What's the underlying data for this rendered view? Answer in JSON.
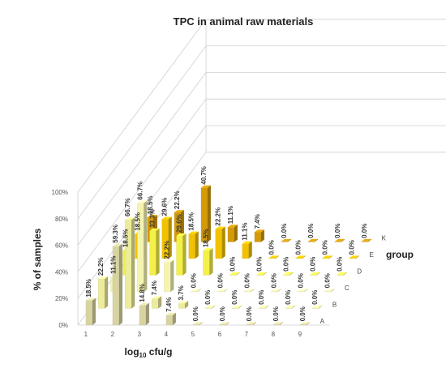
{
  "chart_data": {
    "type": "bar",
    "title": "TPC in animal raw materials",
    "ylabel": "% of samples",
    "xlabel_base": "log",
    "xlabel_sub": "10",
    "xlabel_rest": " cfu/g",
    "zlabel": "group",
    "categories": [
      "1",
      "2",
      "3",
      "4",
      "5",
      "6",
      "7",
      "8",
      "9"
    ],
    "y_ticks": [
      "0%",
      "20%",
      "40%",
      "60%",
      "80%",
      "100%"
    ],
    "ylim": [
      0,
      100
    ],
    "series": [
      {
        "name": "A",
        "color": "#d8d4a2",
        "values": [
          18.5,
          59.3,
          14.8,
          7.4,
          0.0,
          0.0,
          0.0,
          0.0,
          0.0
        ],
        "labels": [
          "18.5%",
          "59.3%",
          "14.8%",
          "7.4%",
          "0.0%",
          "0.0%",
          "0.0%",
          "0.0%",
          "0.0%"
        ]
      },
      {
        "name": "B",
        "color": "#ecec9c",
        "values": [
          22.2,
          66.7,
          7.4,
          3.7,
          0.0,
          0.0,
          0.0,
          0.0,
          0.0
        ],
        "labels": [
          "22.2%",
          "66.7%",
          "7.4%",
          "3.7%",
          "0.0%",
          "0.0%",
          "0.0%",
          "0.0%",
          "0.0%"
        ]
      },
      {
        "name": "C",
        "color": "#f4f4b0",
        "values": [
          11.1,
          66.7,
          22.2,
          0.0,
          0.0,
          0.0,
          0.0,
          0.0,
          0.0
        ],
        "labels": [
          "11.1%",
          "66.7%",
          "22.2%",
          "0.0%",
          "0.0%",
          "0.0%",
          "0.0%",
          "0.0%",
          "0.0%"
        ]
      },
      {
        "name": "D",
        "color": "#f4f04a",
        "values": [
          18.5,
          33.3,
          29.6,
          18.5,
          0.0,
          0.0,
          0.0,
          0.0,
          0.0
        ],
        "labels": [
          "18.5%",
          "33.3%",
          "29.6%",
          "18.5%",
          "0.0%",
          "0.0%",
          "0.0%",
          "0.0%",
          "0.0%"
        ]
      },
      {
        "name": "E",
        "color": "#f2c200",
        "values": [
          18.5,
          29.6,
          18.5,
          22.2,
          11.1,
          0.0,
          0.0,
          0.0,
          0.0
        ],
        "labels": [
          "18.5%",
          "29.6%",
          "18.5%",
          "22.2%",
          "11.1%",
          "0.0%",
          "0.0%",
          "0.0%",
          "0.0%"
        ]
      },
      {
        "name": "K",
        "color": "#d49a08",
        "values": [
          18.5,
          22.2,
          40.7,
          11.1,
          7.4,
          0.0,
          0.0,
          0.0,
          0.0
        ],
        "labels": [
          "18.5%",
          "22.2%",
          "40.7%",
          "11.1%",
          "7.4%",
          "0.0%",
          "0.0%",
          "0.0%",
          "0.0%"
        ]
      }
    ]
  }
}
